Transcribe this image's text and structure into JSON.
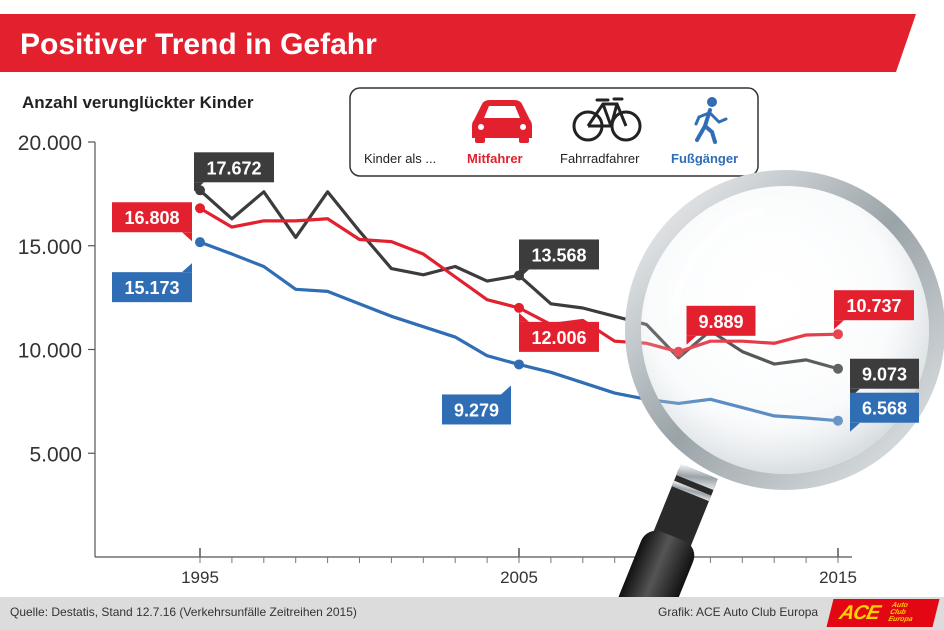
{
  "colors": {
    "mitfahrer": "#e3202e",
    "fahrradfahrer": "#3c3c3c",
    "fussgaenger": "#2f6db5",
    "banner": "#e3202e"
  },
  "header": {
    "title": "Positiver Trend in Gefahr"
  },
  "legend": {
    "prefix": "Kinder als ...",
    "items": [
      {
        "label": "Mitfahrer",
        "icon": "car-icon"
      },
      {
        "label": "Fahrradfahrer",
        "icon": "bicycle-icon"
      },
      {
        "label": "Fußgänger",
        "icon": "pedestrian-icon"
      }
    ]
  },
  "decoration": {
    "icon": "magnifying-glass-icon"
  },
  "chart_data": {
    "type": "line",
    "title": "Positiver Trend in Gefahr",
    "ylabel": "Anzahl verunglückter Kinder",
    "xlabel": "",
    "xlim": [
      1995,
      2015
    ],
    "ylim": [
      0,
      20000
    ],
    "yticks": [
      5000,
      10000,
      15000,
      20000
    ],
    "ytick_labels": [
      "5.000",
      "10.000",
      "15.000",
      "20.000"
    ],
    "xticks": [
      1995,
      2005,
      2015
    ],
    "xtick_labels": [
      "1995",
      "2005",
      "2015"
    ],
    "grid": false,
    "legend_position": "top-right",
    "x": [
      1995,
      1996,
      1997,
      1998,
      1999,
      2000,
      2001,
      2002,
      2003,
      2004,
      2005,
      2006,
      2007,
      2008,
      2009,
      2010,
      2011,
      2012,
      2013,
      2014,
      2015
    ],
    "series": [
      {
        "name": "Fahrradfahrer",
        "colorKey": "fahrradfahrer",
        "values": [
          17672,
          16300,
          17600,
          15400,
          17600,
          15700,
          13900,
          13600,
          14000,
          13300,
          13568,
          12200,
          12000,
          11600,
          11200,
          9600,
          10900,
          9900,
          9300,
          9500,
          9073
        ],
        "labels": [
          {
            "x": 1995,
            "text": "17.672"
          },
          {
            "x": 2005,
            "text": "13.568"
          },
          {
            "x": 2015,
            "text": "9.073"
          }
        ]
      },
      {
        "name": "Mitfahrer",
        "colorKey": "mitfahrer",
        "values": [
          16808,
          15900,
          16200,
          16200,
          16300,
          15300,
          15200,
          14600,
          13500,
          12400,
          12006,
          11200,
          11400,
          10400,
          10300,
          9889,
          10400,
          10400,
          10300,
          10700,
          10737
        ],
        "labels": [
          {
            "x": 1995,
            "text": "16.808"
          },
          {
            "x": 2005,
            "text": "12.006"
          },
          {
            "x": 2010,
            "text": "9.889"
          },
          {
            "x": 2015,
            "text": "10.737"
          }
        ]
      },
      {
        "name": "Fußgänger",
        "colorKey": "fussgaenger",
        "values": [
          15173,
          14600,
          14000,
          12900,
          12800,
          12200,
          11600,
          11100,
          10600,
          9700,
          9279,
          8900,
          8400,
          7900,
          7600,
          7400,
          7600,
          7200,
          6800,
          6700,
          6568
        ],
        "labels": [
          {
            "x": 1995,
            "text": "15.173"
          },
          {
            "x": 2005,
            "text": "9.279"
          },
          {
            "x": 2015,
            "text": "6.568"
          }
        ]
      }
    ]
  },
  "footer": {
    "source": "Quelle: Destatis, Stand 12.7.16 (Verkehrsunfälle Zeitreihen 2015)",
    "credit": "Grafik: ACE Auto Club Europa",
    "logo_main": "ACE",
    "logo_sub": [
      "Auto",
      "Club",
      "Europa"
    ]
  }
}
